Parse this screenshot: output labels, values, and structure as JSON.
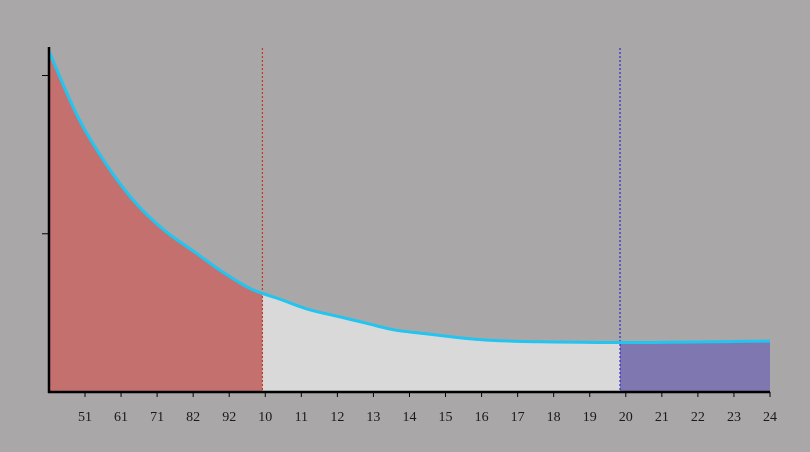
{
  "chart_data": {
    "type": "area",
    "title": "",
    "xlabel": "",
    "ylabel": "",
    "x_tick_labels": [
      "51",
      "61",
      "71",
      "82",
      "92",
      "10",
      "11",
      "12",
      "13",
      "14",
      "15",
      "16",
      "17",
      "18",
      "19",
      "20",
      "21",
      "22",
      "23",
      "24"
    ],
    "xlim": [
      0,
      25
    ],
    "ylim": [
      0,
      1
    ],
    "curve": {
      "description": "exponential decay toward a plateau",
      "points": [
        {
          "x": 0,
          "y": 0.99
        },
        {
          "x": 1,
          "y": 0.8
        },
        {
          "x": 2,
          "y": 0.66
        },
        {
          "x": 3,
          "y": 0.55
        },
        {
          "x": 4,
          "y": 0.47
        },
        {
          "x": 5,
          "y": 0.41
        },
        {
          "x": 6,
          "y": 0.35
        },
        {
          "x": 7,
          "y": 0.3
        },
        {
          "x": 8,
          "y": 0.27
        },
        {
          "x": 9,
          "y": 0.24
        },
        {
          "x": 10,
          "y": 0.22
        },
        {
          "x": 11,
          "y": 0.2
        },
        {
          "x": 12,
          "y": 0.18
        },
        {
          "x": 13,
          "y": 0.17
        },
        {
          "x": 14,
          "y": 0.16
        },
        {
          "x": 15,
          "y": 0.152
        },
        {
          "x": 16,
          "y": 0.148
        },
        {
          "x": 17,
          "y": 0.146
        },
        {
          "x": 18,
          "y": 0.145
        },
        {
          "x": 19,
          "y": 0.144
        },
        {
          "x": 20,
          "y": 0.144
        },
        {
          "x": 21,
          "y": 0.144
        },
        {
          "x": 22,
          "y": 0.145
        },
        {
          "x": 23,
          "y": 0.146
        },
        {
          "x": 24,
          "y": 0.147
        },
        {
          "x": 25,
          "y": 0.148
        }
      ]
    },
    "regions": [
      {
        "x_start": 0,
        "x_end": 7.4,
        "color": "#c4706f"
      },
      {
        "x_start": 7.4,
        "x_end": 19.8,
        "color": "#d9d9d9"
      },
      {
        "x_start": 19.8,
        "x_end": 25,
        "color": "#7f78b0"
      }
    ],
    "vlines": [
      {
        "x": 7.4,
        "color": "#c0392b"
      },
      {
        "x": 19.8,
        "color": "#2a2ad0"
      }
    ],
    "colors": {
      "background": "#a9a7a8",
      "curve": "#22c4f0",
      "axis": "#000000"
    }
  }
}
